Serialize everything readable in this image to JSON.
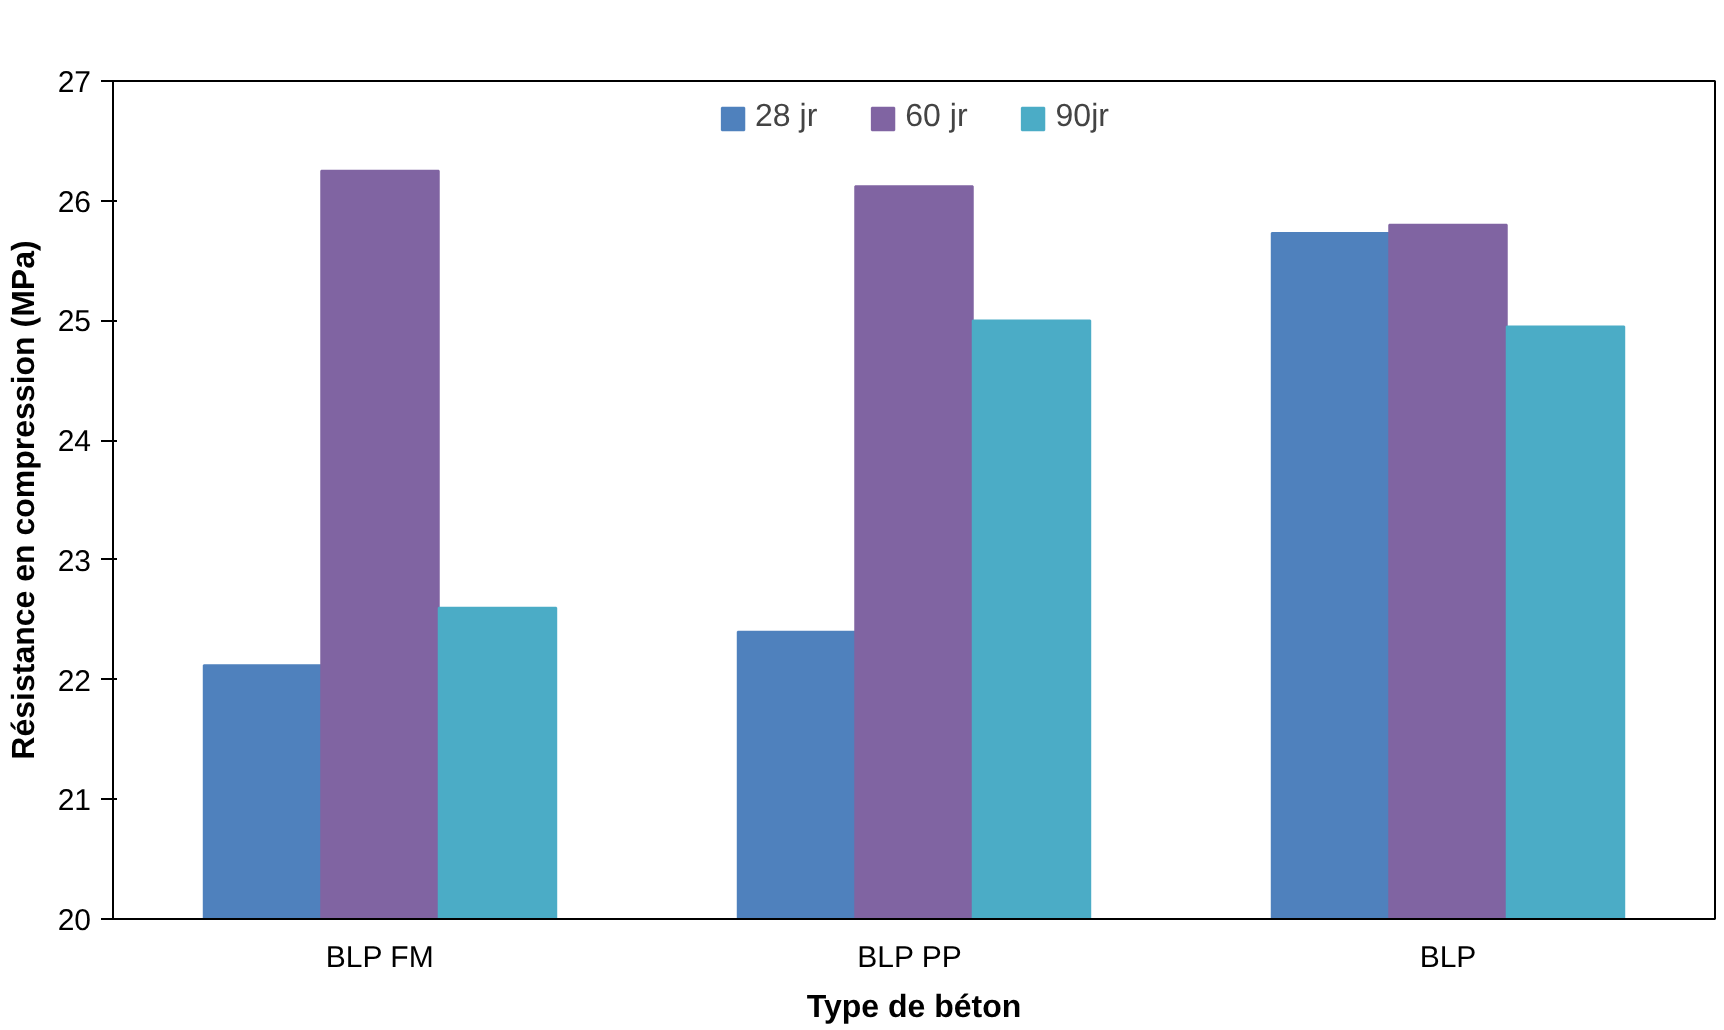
{
  "chart_data": {
    "type": "bar",
    "xlabel": "Type de béton",
    "ylabel": "Résistance en compression (MPa)",
    "categories": [
      "BLP FM",
      "BLP  PP",
      "BLP"
    ],
    "series": [
      {
        "name": "28 jr",
        "color": "#4f81bd",
        "values": [
          22.12,
          22.4,
          25.73
        ]
      },
      {
        "name": "60 jr",
        "color": "#8064a2",
        "values": [
          26.25,
          26.12,
          25.8
        ]
      },
      {
        "name": "90jr",
        "color": "#4bacc6",
        "values": [
          22.6,
          25.0,
          24.95
        ]
      }
    ],
    "ylim": [
      20,
      27
    ],
    "yticks": [
      20,
      21,
      22,
      23,
      24,
      25,
      26,
      27
    ],
    "grid": false,
    "legend": "top"
  }
}
